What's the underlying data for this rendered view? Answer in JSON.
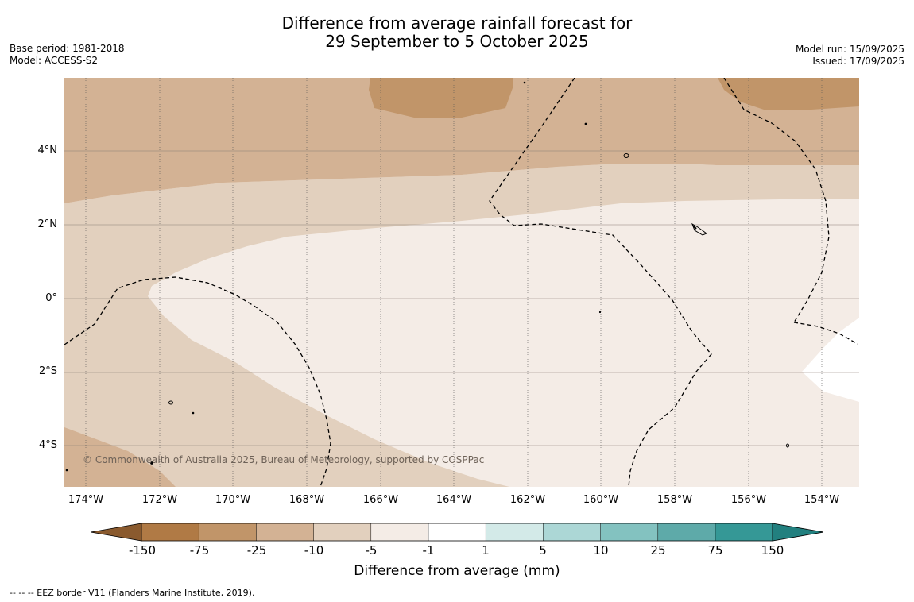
{
  "header": {
    "title_line1": "Difference from average rainfall forecast for",
    "title_line2": "29 September to 5 October 2025",
    "base_period": "Base period: 1981-2018",
    "model": "Model: ACCESS-S2",
    "model_run": "Model run: 15/09/2025",
    "issued": "Issued: 17/09/2025"
  },
  "map": {
    "lat_labels": [
      "4°N",
      "2°N",
      "0°",
      "2°S",
      "4°S"
    ],
    "lon_labels": [
      "174°W",
      "172°W",
      "170°W",
      "168°W",
      "166°W",
      "164°W",
      "162°W",
      "160°W",
      "158°W",
      "156°W",
      "154°W"
    ],
    "copyright": "© Commonwealth of Australia 2025, Bureau of Meteorology, supported by COSPPac",
    "colors": {
      "band_-75_-25": "#c19569",
      "band_-25_-10": "#d3b294",
      "band_-10_-5": "#e2d0be",
      "band_-5_-1": "#f4ece6",
      "band_-1_1": "#ffffff"
    }
  },
  "colorbar": {
    "title": "Difference from average (mm)",
    "ticks": [
      "-150",
      "-75",
      "-25",
      "-10",
      "-5",
      "-1",
      "1",
      "5",
      "10",
      "25",
      "75",
      "150"
    ],
    "colors": [
      "#8a5a2e",
      "#b07a45",
      "#c19569",
      "#d3b294",
      "#e2d0be",
      "#f4ece6",
      "#ffffff",
      "#d3eae8",
      "#acd7d6",
      "#83c2c0",
      "#5eaaa9",
      "#359896",
      "#22807f"
    ]
  },
  "footnote": "--  --  -- EEZ border V11 (Flanders Marine Institute, 2019)."
}
